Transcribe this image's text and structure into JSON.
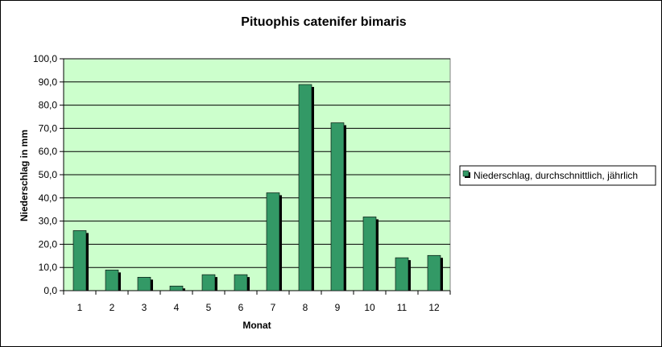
{
  "chart_data": {
    "type": "bar",
    "title": "Pituophis catenifer bimaris",
    "xlabel": "Monat",
    "ylabel": "Niederschlag in mm",
    "categories": [
      "1",
      "2",
      "3",
      "4",
      "5",
      "6",
      "7",
      "8",
      "9",
      "10",
      "11",
      "12"
    ],
    "series": [
      {
        "name": "Niederschlag, durchschnittlich, jährlich",
        "values": [
          25.9,
          8.9,
          5.8,
          2.0,
          6.9,
          6.9,
          42.2,
          88.9,
          72.4,
          31.8,
          14.2,
          15.2
        ]
      }
    ],
    "ylim": [
      0,
      100
    ],
    "yticks": [
      0,
      10,
      20,
      30,
      40,
      50,
      60,
      70,
      80,
      90,
      100
    ],
    "ytick_labels": [
      "0,0",
      "10,0",
      "20,0",
      "30,0",
      "40,0",
      "50,0",
      "60,0",
      "70,0",
      "80,0",
      "90,0",
      "100,0"
    ],
    "grid": true,
    "legend_position": "right",
    "colors": {
      "plot_background": "#ccffcc",
      "bar_fill": "#339966",
      "bar_shadow": "#000000",
      "gridline": "#000000"
    }
  }
}
